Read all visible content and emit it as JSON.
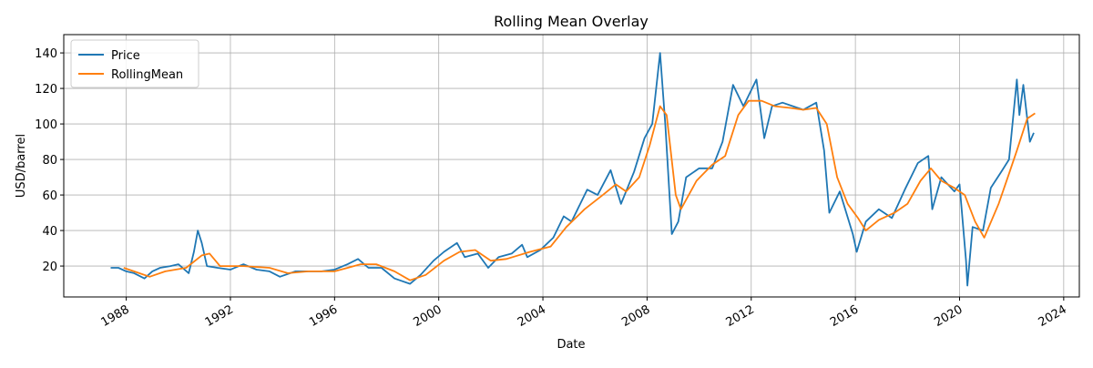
{
  "chart_data": {
    "type": "line",
    "title": "Rolling Mean Overlay",
    "x_label": "Date",
    "y_label": "USD/barrel",
    "xlim": [
      1985.6,
      2024.6
    ],
    "xticks": [
      1988,
      1992,
      1996,
      2000,
      2004,
      2008,
      2012,
      2016,
      2020,
      2024
    ],
    "ylim": [
      2.6,
      150.3
    ],
    "yticks": [
      20,
      40,
      60,
      80,
      100,
      120,
      140
    ],
    "grid": true,
    "legend": "upper left",
    "series": [
      {
        "name": "Price",
        "color": "#1f77b4",
        "x": [
          1987.4,
          1987.7,
          1988.0,
          1988.3,
          1988.7,
          1989.0,
          1989.3,
          1989.7,
          1990.0,
          1990.4,
          1990.6,
          1990.75,
          1990.9,
          1991.1,
          1991.5,
          1992.0,
          1992.5,
          1993.0,
          1993.5,
          1993.9,
          1994.5,
          1995.0,
          1995.5,
          1996.0,
          1996.5,
          1996.9,
          1997.3,
          1997.8,
          1998.3,
          1998.9,
          1999.3,
          1999.8,
          2000.2,
          2000.7,
          2001.0,
          2001.5,
          2001.9,
          2002.3,
          2002.8,
          2003.2,
          2003.4,
          2003.9,
          2004.4,
          2004.8,
          2005.1,
          2005.7,
          2006.1,
          2006.6,
          2007.0,
          2007.5,
          2007.9,
          2008.2,
          2008.5,
          2008.7,
          2008.95,
          2009.2,
          2009.5,
          2010.0,
          2010.5,
          2010.9,
          2011.3,
          2011.7,
          2012.2,
          2012.5,
          2012.8,
          2013.2,
          2013.6,
          2014.0,
          2014.5,
          2014.8,
          2015.0,
          2015.4,
          2015.9,
          2016.05,
          2016.4,
          2016.9,
          2017.4,
          2017.9,
          2018.4,
          2018.8,
          2018.95,
          2019.3,
          2019.8,
          2020.0,
          2020.25,
          2020.3,
          2020.5,
          2020.9,
          2021.2,
          2021.6,
          2021.9,
          2022.2,
          2022.3,
          2022.45,
          2022.7,
          2022.85
        ],
        "values": [
          19,
          19,
          17,
          16,
          13,
          17,
          19,
          20,
          21,
          16,
          28,
          40,
          33,
          20,
          19,
          18,
          21,
          18,
          17,
          14,
          17,
          17,
          17,
          18,
          21,
          24,
          19,
          19,
          13,
          10,
          15,
          23,
          28,
          33,
          25,
          27,
          19,
          25,
          27,
          32,
          25,
          29,
          36,
          48,
          45,
          63,
          60,
          74,
          55,
          73,
          92,
          100,
          140,
          100,
          38,
          45,
          70,
          75,
          75,
          90,
          122,
          110,
          125,
          92,
          110,
          112,
          110,
          108,
          112,
          85,
          50,
          62,
          38,
          28,
          45,
          52,
          47,
          63,
          78,
          82,
          52,
          70,
          62,
          66,
          23,
          9,
          42,
          40,
          64,
          73,
          80,
          125,
          105,
          122,
          90,
          95
        ]
      },
      {
        "name": "RollingMean",
        "color": "#ff7f0e",
        "x": [
          1987.9,
          1988.5,
          1988.9,
          1989.5,
          1990.3,
          1990.9,
          1991.2,
          1991.6,
          1992.5,
          1993.5,
          1994.2,
          1995.0,
          1996.0,
          1997.0,
          1997.6,
          1998.3,
          1998.9,
          1999.5,
          2000.2,
          2000.8,
          2001.4,
          2002.0,
          2002.6,
          2003.5,
          2004.3,
          2004.9,
          2005.6,
          2006.3,
          2006.8,
          2007.2,
          2007.7,
          2008.1,
          2008.5,
          2008.75,
          2009.1,
          2009.3,
          2009.9,
          2010.5,
          2011.0,
          2011.5,
          2011.9,
          2012.4,
          2012.9,
          2013.5,
          2014.0,
          2014.5,
          2014.9,
          2015.3,
          2015.7,
          2016.1,
          2016.4,
          2016.9,
          2017.5,
          2018.0,
          2018.5,
          2018.9,
          2019.3,
          2019.8,
          2020.2,
          2020.6,
          2020.95,
          2021.5,
          2021.9,
          2022.2,
          2022.6,
          2022.9
        ],
        "values": [
          19,
          16,
          14,
          17,
          19,
          26,
          27,
          20,
          20,
          19,
          16,
          17,
          17,
          21,
          21,
          17,
          12,
          15,
          23,
          28,
          29,
          23,
          24,
          28,
          31,
          42,
          52,
          60,
          66,
          62,
          70,
          88,
          110,
          105,
          60,
          52,
          68,
          77,
          82,
          105,
          113,
          113,
          110,
          109,
          108,
          109,
          100,
          70,
          55,
          47,
          40,
          46,
          50,
          55,
          68,
          75,
          68,
          64,
          60,
          45,
          36,
          55,
          72,
          85,
          103,
          106
        ]
      }
    ]
  }
}
